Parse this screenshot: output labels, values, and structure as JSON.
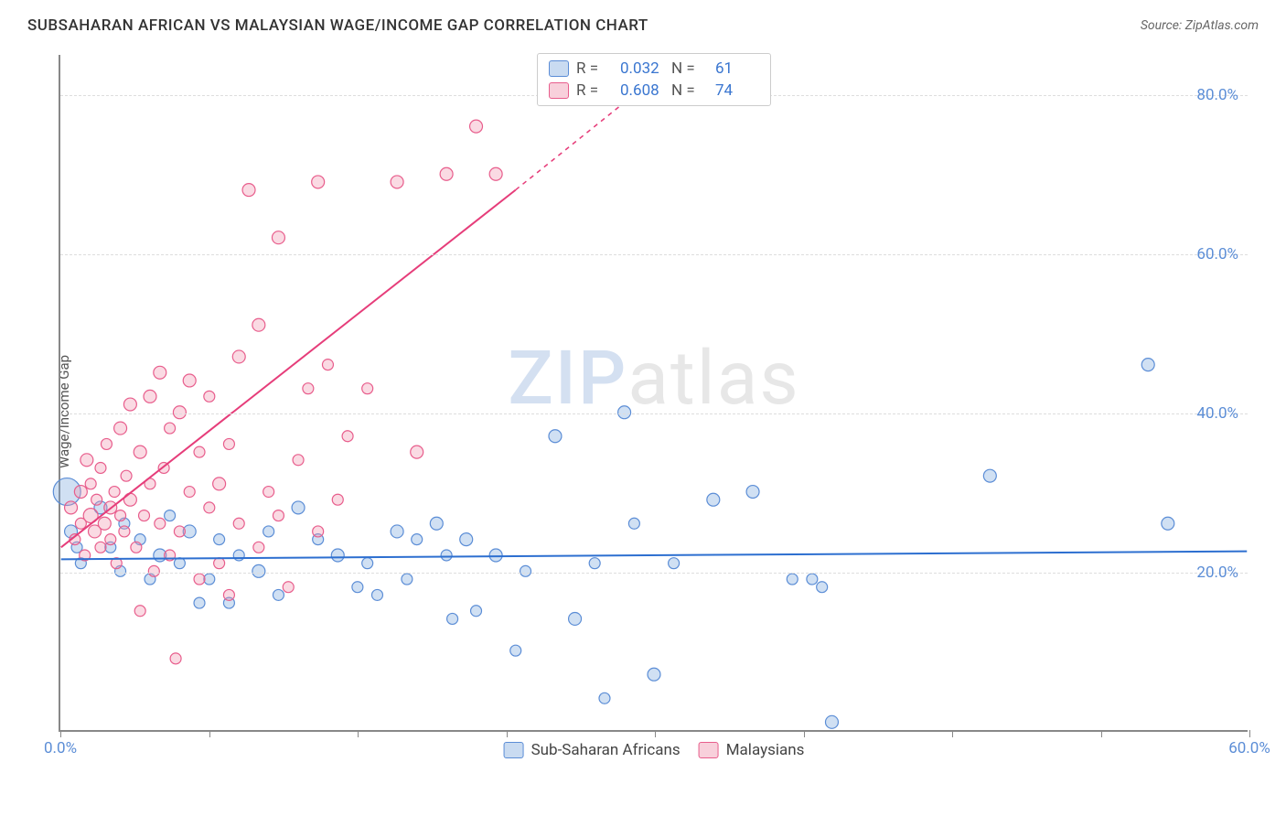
{
  "header": {
    "title": "SUBSAHARAN AFRICAN VS MALAYSIAN WAGE/INCOME GAP CORRELATION CHART",
    "source_label": "Source: ",
    "source_name": "ZipAtlas.com"
  },
  "y_axis": {
    "label": "Wage/Income Gap"
  },
  "watermark": {
    "zip": "ZIP",
    "atlas": "atlas"
  },
  "chart": {
    "type": "scatter",
    "xlim": [
      0,
      60
    ],
    "ylim": [
      0,
      85
    ],
    "x_ticks": [
      0,
      7.5,
      15,
      22.5,
      30,
      37.5,
      45,
      52.5,
      60
    ],
    "x_tick_labels": [
      "0.0%",
      "",
      "",
      "",
      "",
      "",
      "",
      "",
      "60.0%"
    ],
    "y_gridlines": [
      20,
      40,
      60,
      80
    ],
    "y_tick_labels": [
      "20.0%",
      "40.0%",
      "60.0%",
      "80.0%"
    ],
    "background_color": "#ffffff",
    "grid_color": "#dddddd",
    "series": {
      "blue": {
        "name": "Sub-Saharan Africans",
        "fill": "rgba(120,165,220,0.35)",
        "stroke": "#5b8dd6",
        "r_value": "0.032",
        "n_value": "61",
        "trend": {
          "x1": 0,
          "y1": 21.5,
          "x2": 60,
          "y2": 22.5,
          "color": "#2d6fd0",
          "width": 2
        },
        "points": [
          {
            "x": 0.3,
            "y": 30,
            "r": 15
          },
          {
            "x": 0.5,
            "y": 25,
            "r": 7
          },
          {
            "x": 0.8,
            "y": 23,
            "r": 6
          },
          {
            "x": 1,
            "y": 21,
            "r": 6
          },
          {
            "x": 2,
            "y": 28,
            "r": 7
          },
          {
            "x": 2.5,
            "y": 23,
            "r": 6
          },
          {
            "x": 3,
            "y": 20,
            "r": 6
          },
          {
            "x": 3.2,
            "y": 26,
            "r": 6
          },
          {
            "x": 4,
            "y": 24,
            "r": 6
          },
          {
            "x": 4.5,
            "y": 19,
            "r": 6
          },
          {
            "x": 5,
            "y": 22,
            "r": 7
          },
          {
            "x": 5.5,
            "y": 27,
            "r": 6
          },
          {
            "x": 6,
            "y": 21,
            "r": 6
          },
          {
            "x": 6.5,
            "y": 25,
            "r": 7
          },
          {
            "x": 7,
            "y": 16,
            "r": 6
          },
          {
            "x": 7.5,
            "y": 19,
            "r": 6
          },
          {
            "x": 8,
            "y": 24,
            "r": 6
          },
          {
            "x": 8.5,
            "y": 16,
            "r": 6
          },
          {
            "x": 9,
            "y": 22,
            "r": 6
          },
          {
            "x": 10,
            "y": 20,
            "r": 7
          },
          {
            "x": 10.5,
            "y": 25,
            "r": 6
          },
          {
            "x": 11,
            "y": 17,
            "r": 6
          },
          {
            "x": 12,
            "y": 28,
            "r": 7
          },
          {
            "x": 13,
            "y": 24,
            "r": 6
          },
          {
            "x": 14,
            "y": 22,
            "r": 7
          },
          {
            "x": 15,
            "y": 18,
            "r": 6
          },
          {
            "x": 15.5,
            "y": 21,
            "r": 6
          },
          {
            "x": 16,
            "y": 17,
            "r": 6
          },
          {
            "x": 17,
            "y": 25,
            "r": 7
          },
          {
            "x": 17.5,
            "y": 19,
            "r": 6
          },
          {
            "x": 18,
            "y": 24,
            "r": 6
          },
          {
            "x": 19,
            "y": 26,
            "r": 7
          },
          {
            "x": 19.5,
            "y": 22,
            "r": 6
          },
          {
            "x": 19.8,
            "y": 14,
            "r": 6
          },
          {
            "x": 20.5,
            "y": 24,
            "r": 7
          },
          {
            "x": 21,
            "y": 15,
            "r": 6
          },
          {
            "x": 22,
            "y": 22,
            "r": 7
          },
          {
            "x": 23,
            "y": 10,
            "r": 6
          },
          {
            "x": 23.5,
            "y": 20,
            "r": 6
          },
          {
            "x": 25,
            "y": 37,
            "r": 7
          },
          {
            "x": 26,
            "y": 14,
            "r": 7
          },
          {
            "x": 27,
            "y": 21,
            "r": 6
          },
          {
            "x": 27.5,
            "y": 4,
            "r": 6
          },
          {
            "x": 28.5,
            "y": 40,
            "r": 7
          },
          {
            "x": 29,
            "y": 26,
            "r": 6
          },
          {
            "x": 30,
            "y": 7,
            "r": 7
          },
          {
            "x": 31,
            "y": 21,
            "r": 6
          },
          {
            "x": 33,
            "y": 29,
            "r": 7
          },
          {
            "x": 35,
            "y": 30,
            "r": 7
          },
          {
            "x": 37,
            "y": 19,
            "r": 6
          },
          {
            "x": 38,
            "y": 19,
            "r": 6
          },
          {
            "x": 38.5,
            "y": 18,
            "r": 6
          },
          {
            "x": 39,
            "y": 1,
            "r": 7
          },
          {
            "x": 47,
            "y": 32,
            "r": 7
          },
          {
            "x": 55,
            "y": 46,
            "r": 7
          },
          {
            "x": 56,
            "y": 26,
            "r": 7
          }
        ]
      },
      "pink": {
        "name": "Malaysians",
        "fill": "rgba(240,150,175,0.35)",
        "stroke": "#e85d8c",
        "r_value": "0.608",
        "n_value": "74",
        "trend_solid": {
          "x1": 0,
          "y1": 23,
          "x2": 23,
          "y2": 68,
          "color": "#e63d7a",
          "width": 2
        },
        "trend_dash": {
          "x1": 23,
          "y1": 68,
          "x2": 29,
          "y2": 80,
          "color": "#e63d7a",
          "width": 1.5
        },
        "points": [
          {
            "x": 0.5,
            "y": 28,
            "r": 7
          },
          {
            "x": 0.7,
            "y": 24,
            "r": 6
          },
          {
            "x": 1,
            "y": 30,
            "r": 7
          },
          {
            "x": 1,
            "y": 26,
            "r": 6
          },
          {
            "x": 1.2,
            "y": 22,
            "r": 6
          },
          {
            "x": 1.3,
            "y": 34,
            "r": 7
          },
          {
            "x": 1.5,
            "y": 27,
            "r": 8
          },
          {
            "x": 1.5,
            "y": 31,
            "r": 6
          },
          {
            "x": 1.7,
            "y": 25,
            "r": 7
          },
          {
            "x": 1.8,
            "y": 29,
            "r": 6
          },
          {
            "x": 2,
            "y": 23,
            "r": 6
          },
          {
            "x": 2,
            "y": 33,
            "r": 6
          },
          {
            "x": 2.2,
            "y": 26,
            "r": 7
          },
          {
            "x": 2.3,
            "y": 36,
            "r": 6
          },
          {
            "x": 2.5,
            "y": 28,
            "r": 7
          },
          {
            "x": 2.5,
            "y": 24,
            "r": 6
          },
          {
            "x": 2.7,
            "y": 30,
            "r": 6
          },
          {
            "x": 2.8,
            "y": 21,
            "r": 6
          },
          {
            "x": 3,
            "y": 38,
            "r": 7
          },
          {
            "x": 3,
            "y": 27,
            "r": 6
          },
          {
            "x": 3.2,
            "y": 25,
            "r": 6
          },
          {
            "x": 3.3,
            "y": 32,
            "r": 6
          },
          {
            "x": 3.5,
            "y": 29,
            "r": 7
          },
          {
            "x": 3.5,
            "y": 41,
            "r": 7
          },
          {
            "x": 3.8,
            "y": 23,
            "r": 6
          },
          {
            "x": 4,
            "y": 35,
            "r": 7
          },
          {
            "x": 4,
            "y": 15,
            "r": 6
          },
          {
            "x": 4.2,
            "y": 27,
            "r": 6
          },
          {
            "x": 4.5,
            "y": 42,
            "r": 7
          },
          {
            "x": 4.5,
            "y": 31,
            "r": 6
          },
          {
            "x": 4.7,
            "y": 20,
            "r": 6
          },
          {
            "x": 5,
            "y": 45,
            "r": 7
          },
          {
            "x": 5,
            "y": 26,
            "r": 6
          },
          {
            "x": 5.2,
            "y": 33,
            "r": 6
          },
          {
            "x": 5.5,
            "y": 38,
            "r": 6
          },
          {
            "x": 5.5,
            "y": 22,
            "r": 6
          },
          {
            "x": 5.8,
            "y": 9,
            "r": 6
          },
          {
            "x": 6,
            "y": 40,
            "r": 7
          },
          {
            "x": 6,
            "y": 25,
            "r": 6
          },
          {
            "x": 6.5,
            "y": 30,
            "r": 6
          },
          {
            "x": 6.5,
            "y": 44,
            "r": 7
          },
          {
            "x": 7,
            "y": 19,
            "r": 6
          },
          {
            "x": 7,
            "y": 35,
            "r": 6
          },
          {
            "x": 7.5,
            "y": 28,
            "r": 6
          },
          {
            "x": 7.5,
            "y": 42,
            "r": 6
          },
          {
            "x": 8,
            "y": 31,
            "r": 7
          },
          {
            "x": 8,
            "y": 21,
            "r": 6
          },
          {
            "x": 8.5,
            "y": 36,
            "r": 6
          },
          {
            "x": 8.5,
            "y": 17,
            "r": 6
          },
          {
            "x": 9,
            "y": 47,
            "r": 7
          },
          {
            "x": 9,
            "y": 26,
            "r": 6
          },
          {
            "x": 9.5,
            "y": 68,
            "r": 7
          },
          {
            "x": 10,
            "y": 51,
            "r": 7
          },
          {
            "x": 10,
            "y": 23,
            "r": 6
          },
          {
            "x": 10.5,
            "y": 30,
            "r": 6
          },
          {
            "x": 11,
            "y": 62,
            "r": 7
          },
          {
            "x": 11,
            "y": 27,
            "r": 6
          },
          {
            "x": 11.5,
            "y": 18,
            "r": 6
          },
          {
            "x": 12,
            "y": 34,
            "r": 6
          },
          {
            "x": 12.5,
            "y": 43,
            "r": 6
          },
          {
            "x": 13,
            "y": 25,
            "r": 6
          },
          {
            "x": 13,
            "y": 69,
            "r": 7
          },
          {
            "x": 13.5,
            "y": 46,
            "r": 6
          },
          {
            "x": 14,
            "y": 29,
            "r": 6
          },
          {
            "x": 14.5,
            "y": 37,
            "r": 6
          },
          {
            "x": 15.5,
            "y": 43,
            "r": 6
          },
          {
            "x": 17,
            "y": 69,
            "r": 7
          },
          {
            "x": 18,
            "y": 35,
            "r": 7
          },
          {
            "x": 19.5,
            "y": 70,
            "r": 7
          },
          {
            "x": 21,
            "y": 76,
            "r": 7
          },
          {
            "x": 22,
            "y": 70,
            "r": 7
          }
        ]
      }
    }
  },
  "legend_top": {
    "r_label": "R =",
    "n_label": "N ="
  },
  "colors": {
    "blue_swatch_fill": "rgba(120,165,220,0.4)",
    "blue_swatch_border": "#5b8dd6",
    "pink_swatch_fill": "rgba(240,150,175,0.45)",
    "pink_swatch_border": "#e85d8c"
  }
}
